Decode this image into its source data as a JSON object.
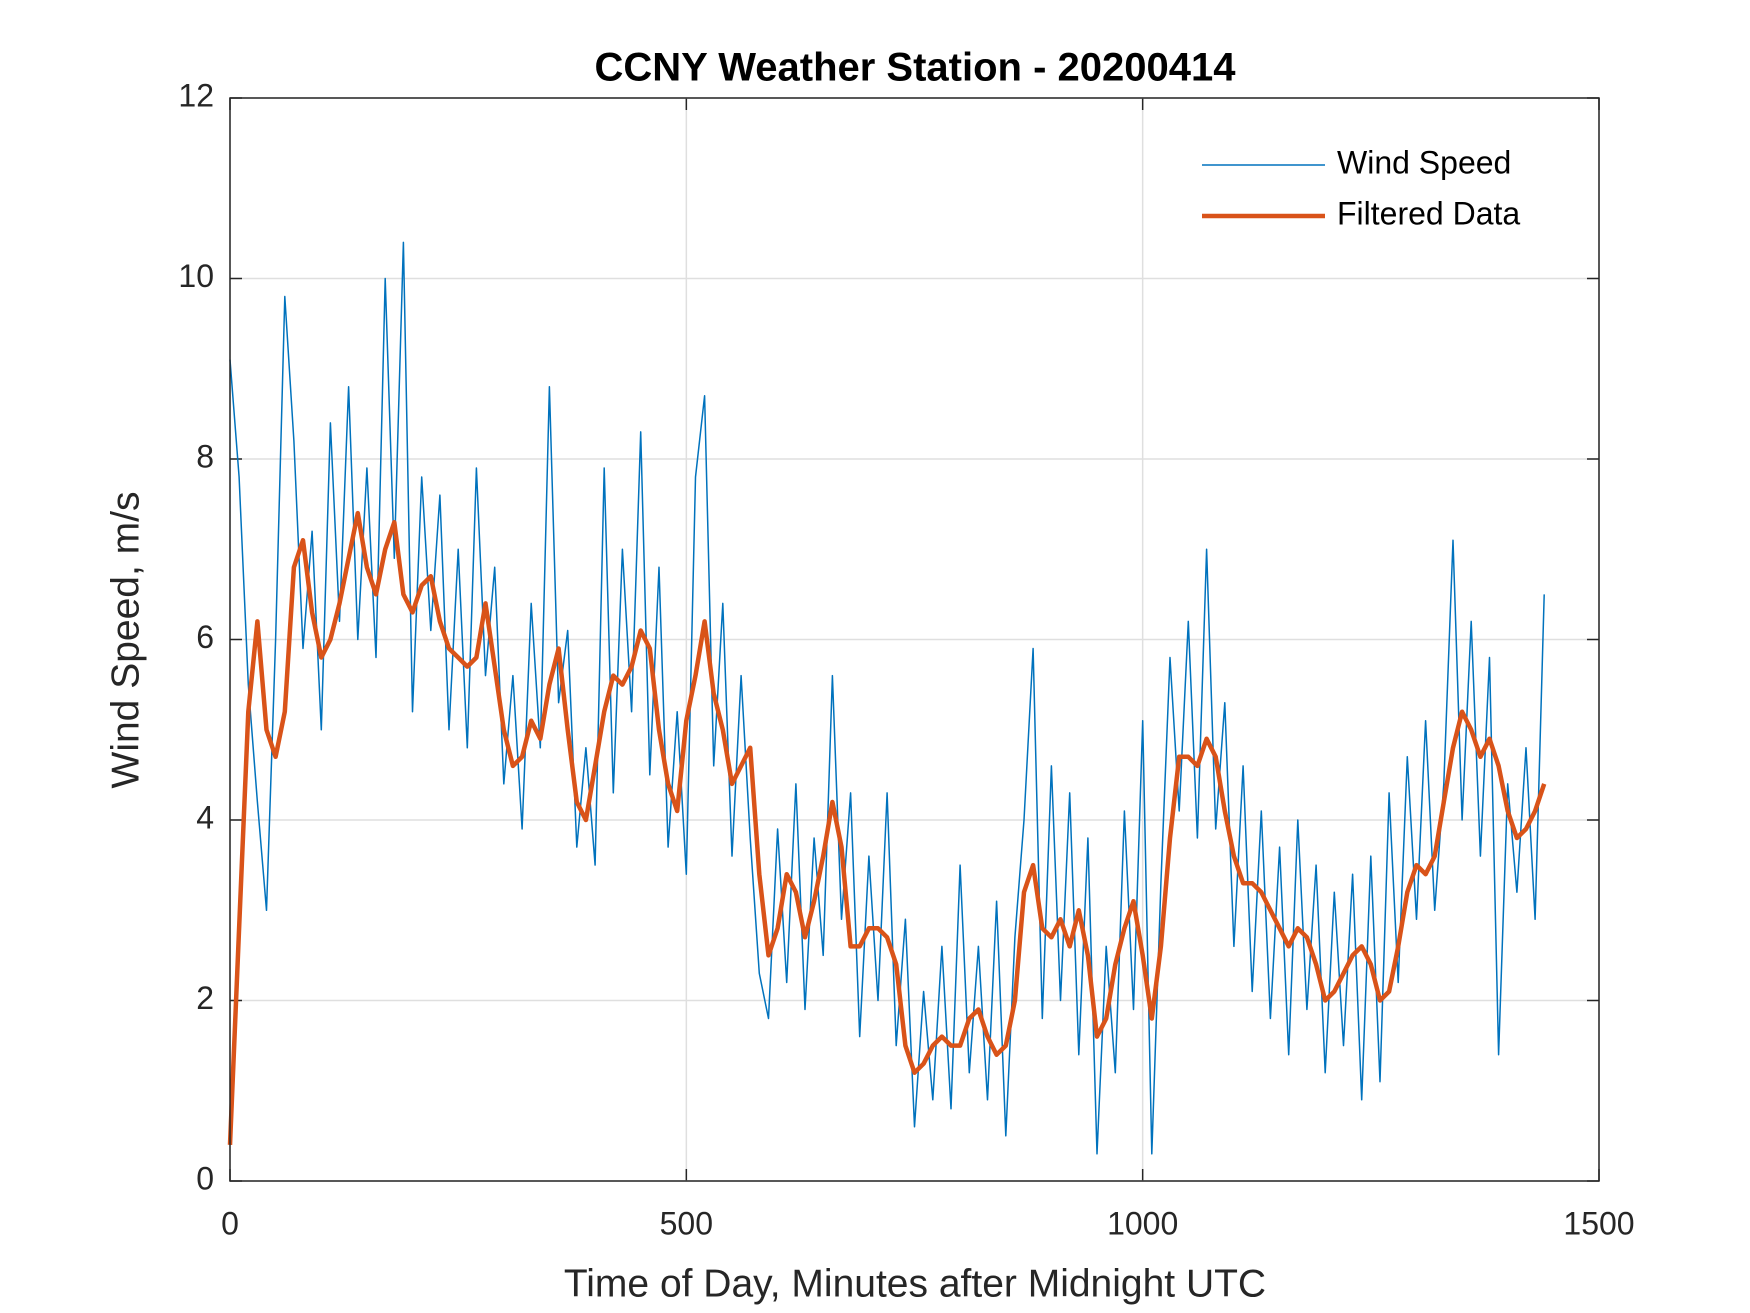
{
  "chart_data": {
    "type": "line",
    "title": "CCNY Weather Station - 20200414",
    "x_label": "Time of Day, Minutes after Midnight UTC",
    "y_label": "Wind Speed, m/s",
    "x": [
      0,
      10,
      20,
      30,
      40,
      50,
      60,
      70,
      80,
      90,
      100,
      110,
      120,
      130,
      140,
      150,
      160,
      170,
      180,
      190,
      200,
      210,
      220,
      230,
      240,
      250,
      260,
      270,
      280,
      290,
      300,
      310,
      320,
      330,
      340,
      350,
      360,
      370,
      380,
      390,
      400,
      410,
      420,
      430,
      440,
      450,
      460,
      470,
      480,
      490,
      500,
      510,
      520,
      530,
      540,
      550,
      560,
      570,
      580,
      590,
      600,
      610,
      620,
      630,
      640,
      650,
      660,
      670,
      680,
      690,
      700,
      710,
      720,
      730,
      740,
      750,
      760,
      770,
      780,
      790,
      800,
      810,
      820,
      830,
      840,
      850,
      860,
      870,
      880,
      890,
      900,
      910,
      920,
      930,
      940,
      950,
      960,
      970,
      980,
      990,
      1000,
      1010,
      1020,
      1030,
      1040,
      1050,
      1060,
      1070,
      1080,
      1090,
      1100,
      1110,
      1120,
      1130,
      1140,
      1150,
      1160,
      1170,
      1180,
      1190,
      1200,
      1210,
      1220,
      1230,
      1240,
      1250,
      1260,
      1270,
      1280,
      1290,
      1300,
      1310,
      1320,
      1330,
      1340,
      1350,
      1360,
      1370,
      1380,
      1390,
      1400,
      1410,
      1420,
      1430,
      1440
    ],
    "series": [
      {
        "name": "Wind Speed",
        "color": "#0072bd",
        "width": 1.5,
        "values": [
          9.1,
          7.8,
          5.5,
          4.2,
          3.0,
          6.0,
          9.8,
          8.2,
          5.9,
          7.2,
          5.0,
          8.4,
          6.2,
          8.8,
          6.0,
          7.9,
          5.8,
          10.0,
          6.9,
          10.4,
          5.2,
          7.8,
          6.1,
          7.6,
          5.0,
          7.0,
          4.8,
          7.9,
          5.6,
          6.8,
          4.4,
          5.6,
          3.9,
          6.4,
          4.8,
          8.8,
          5.3,
          6.1,
          3.7,
          4.8,
          3.5,
          7.9,
          4.3,
          7.0,
          5.2,
          8.3,
          4.5,
          6.8,
          3.7,
          5.2,
          3.4,
          7.8,
          8.7,
          4.6,
          6.4,
          3.6,
          5.6,
          3.8,
          2.3,
          1.8,
          3.9,
          2.2,
          4.4,
          1.9,
          3.8,
          2.5,
          5.6,
          2.9,
          4.3,
          1.6,
          3.6,
          2.0,
          4.3,
          1.5,
          2.9,
          0.6,
          2.1,
          0.9,
          2.6,
          0.8,
          3.5,
          1.2,
          2.6,
          0.9,
          3.1,
          0.5,
          2.7,
          4.0,
          5.9,
          1.8,
          4.6,
          2.0,
          4.3,
          1.4,
          3.8,
          0.3,
          2.6,
          1.2,
          4.1,
          1.9,
          5.1,
          0.3,
          3.3,
          5.8,
          4.1,
          6.2,
          3.8,
          7.0,
          3.9,
          5.3,
          2.6,
          4.6,
          2.1,
          4.1,
          1.8,
          3.7,
          1.4,
          4.0,
          1.9,
          3.5,
          1.2,
          3.2,
          1.5,
          3.4,
          0.9,
          3.6,
          1.1,
          4.3,
          2.2,
          4.7,
          2.9,
          5.1,
          3.0,
          4.4,
          7.1,
          4.0,
          6.2,
          3.6,
          5.8,
          1.4,
          4.4,
          3.2,
          4.8,
          2.9,
          6.5
        ]
      },
      {
        "name": "Filtered Data",
        "color": "#d95319",
        "width": 4.5,
        "values": [
          0.4,
          2.8,
          5.2,
          6.2,
          5.0,
          4.7,
          5.2,
          6.8,
          7.1,
          6.3,
          5.8,
          6.0,
          6.4,
          6.9,
          7.4,
          6.8,
          6.5,
          7.0,
          7.3,
          6.5,
          6.3,
          6.6,
          6.7,
          6.2,
          5.9,
          5.8,
          5.7,
          5.8,
          6.4,
          5.7,
          5.0,
          4.6,
          4.7,
          5.1,
          4.9,
          5.5,
          5.9,
          5.0,
          4.2,
          4.0,
          4.6,
          5.2,
          5.6,
          5.5,
          5.7,
          6.1,
          5.9,
          5.0,
          4.4,
          4.1,
          5.1,
          5.6,
          6.2,
          5.4,
          5.0,
          4.4,
          4.6,
          4.8,
          3.4,
          2.5,
          2.8,
          3.4,
          3.2,
          2.7,
          3.1,
          3.6,
          4.2,
          3.7,
          2.6,
          2.6,
          2.8,
          2.8,
          2.7,
          2.4,
          1.5,
          1.2,
          1.3,
          1.5,
          1.6,
          1.5,
          1.5,
          1.8,
          1.9,
          1.6,
          1.4,
          1.5,
          2.0,
          3.2,
          3.5,
          2.8,
          2.7,
          2.9,
          2.6,
          3.0,
          2.5,
          1.6,
          1.8,
          2.4,
          2.8,
          3.1,
          2.5,
          1.8,
          2.6,
          3.8,
          4.7,
          4.7,
          4.6,
          4.9,
          4.7,
          4.1,
          3.6,
          3.3,
          3.3,
          3.2,
          3.0,
          2.8,
          2.6,
          2.8,
          2.7,
          2.4,
          2.0,
          2.1,
          2.3,
          2.5,
          2.6,
          2.4,
          2.0,
          2.1,
          2.6,
          3.2,
          3.5,
          3.4,
          3.6,
          4.2,
          4.8,
          5.2,
          5.0,
          4.7,
          4.9,
          4.6,
          4.1,
          3.8,
          3.9,
          4.1,
          4.4
        ]
      }
    ],
    "xlim": [
      0,
      1500
    ],
    "xticks": [
      0,
      500,
      1000,
      1500
    ],
    "ylim": [
      0,
      12
    ],
    "yticks": [
      0,
      2,
      4,
      6,
      8,
      10,
      12
    ],
    "grid": true,
    "legend": "upper right"
  }
}
